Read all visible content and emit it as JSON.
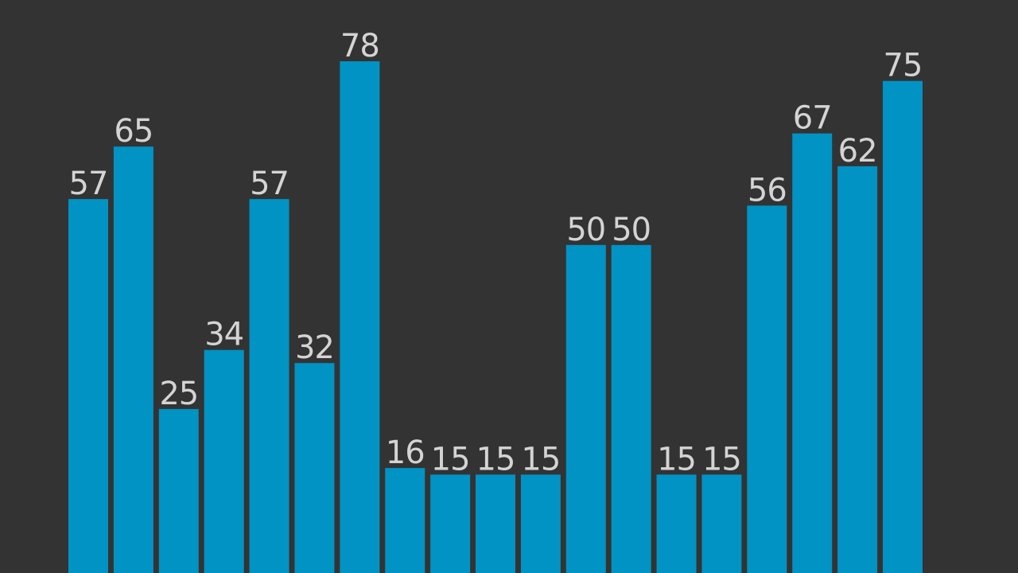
{
  "chart_data": {
    "type": "bar",
    "values": [
      57,
      65,
      25,
      34,
      57,
      32,
      78,
      16,
      15,
      15,
      15,
      50,
      50,
      15,
      15,
      56,
      67,
      62,
      75
    ],
    "color": "#0093c4",
    "label_color": "#d4d4d4",
    "background": "#333333"
  }
}
